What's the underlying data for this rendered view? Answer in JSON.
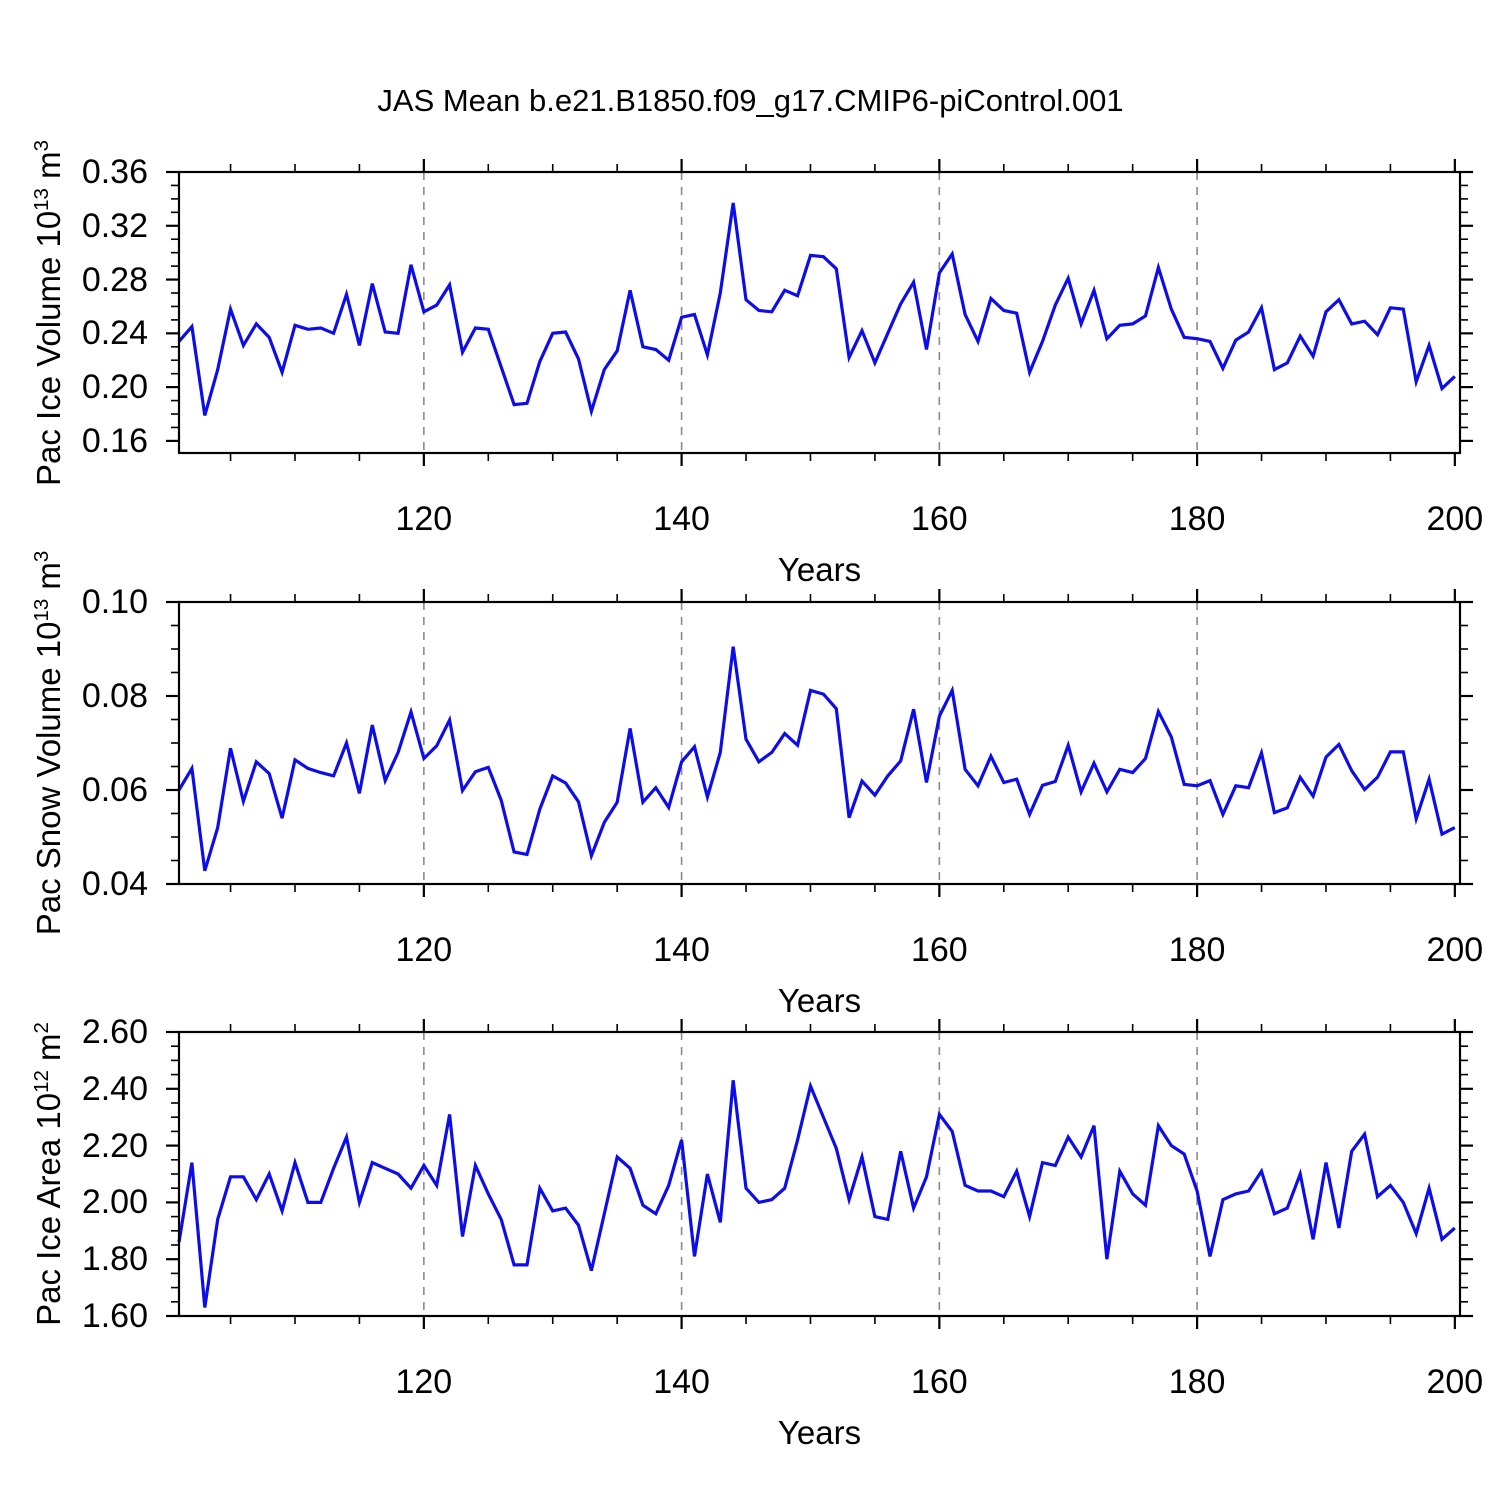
{
  "title": "JAS Mean b.e21.B1850.f09_g17.CMIP6-piControl.001",
  "xlabel": "Years",
  "colors": {
    "line": "#0d0de8",
    "grid": "#8a8a8a",
    "axis": "#000000"
  },
  "chart_data": [
    {
      "type": "line",
      "name": "pac-ice-volume",
      "ylabel": {
        "prefix": "Pac Ice Volume 10",
        "exp": "13",
        "unit": " m",
        "unit_exp": "3"
      },
      "xlabel": "Years",
      "xlim": [
        101,
        200.4
      ],
      "ylim": [
        0.151,
        0.36
      ],
      "x_start": 101,
      "grid_x": [
        120,
        140,
        160,
        180
      ],
      "xticks": [
        120,
        140,
        160,
        180,
        200
      ],
      "xtick_labels": [
        "120",
        "140",
        "160",
        "180",
        "200"
      ],
      "xminor_step": 5,
      "yticks": [
        0.36,
        0.32,
        0.28,
        0.24,
        0.2,
        0.16
      ],
      "ytick_labels": [
        "0.36",
        "0.32",
        "0.28",
        "0.24",
        "0.20",
        "0.16"
      ],
      "yminor_step": 0.01,
      "values": [
        0.234,
        0.245,
        0.179,
        0.213,
        0.258,
        0.231,
        0.247,
        0.237,
        0.211,
        0.246,
        0.243,
        0.244,
        0.24,
        0.269,
        0.231,
        0.277,
        0.241,
        0.24,
        0.291,
        0.256,
        0.261,
        0.276,
        0.226,
        0.244,
        0.243,
        0.215,
        0.187,
        0.188,
        0.219,
        0.24,
        0.241,
        0.221,
        0.182,
        0.213,
        0.227,
        0.272,
        0.23,
        0.228,
        0.22,
        0.252,
        0.254,
        0.224,
        0.27,
        0.337,
        0.265,
        0.257,
        0.256,
        0.272,
        0.268,
        0.298,
        0.297,
        0.288,
        0.222,
        0.242,
        0.218,
        0.24,
        0.262,
        0.278,
        0.228,
        0.285,
        0.299,
        0.254,
        0.234,
        0.266,
        0.257,
        0.255,
        0.211,
        0.234,
        0.261,
        0.281,
        0.247,
        0.272,
        0.236,
        0.246,
        0.247,
        0.253,
        0.289,
        0.258,
        0.237,
        0.236,
        0.234,
        0.214,
        0.235,
        0.241,
        0.259,
        0.213,
        0.218,
        0.238,
        0.223,
        0.256,
        0.265,
        0.247,
        0.249,
        0.239,
        0.259,
        0.258,
        0.204,
        0.231,
        0.199,
        0.208
      ]
    },
    {
      "type": "line",
      "name": "pac-snow-volume",
      "ylabel": {
        "prefix": "Pac Snow Volume 10",
        "exp": "13",
        "unit": " m",
        "unit_exp": "3"
      },
      "xlabel": "Years",
      "xlim": [
        101,
        200.4
      ],
      "ylim": [
        0.04,
        0.1
      ],
      "x_start": 101,
      "grid_x": [
        120,
        140,
        160,
        180
      ],
      "xticks": [
        120,
        140,
        160,
        180,
        200
      ],
      "xtick_labels": [
        "120",
        "140",
        "160",
        "180",
        "200"
      ],
      "xminor_step": 5,
      "yticks": [
        0.1,
        0.08,
        0.06,
        0.04
      ],
      "ytick_labels": [
        "0.10",
        "0.08",
        "0.06",
        "0.04"
      ],
      "yminor_step": 0.005,
      "values": [
        0.06,
        0.0646,
        0.0428,
        0.052,
        0.0689,
        0.0576,
        0.066,
        0.0635,
        0.054,
        0.0664,
        0.0646,
        0.0637,
        0.063,
        0.07,
        0.0593,
        0.0738,
        0.062,
        0.068,
        0.0766,
        0.0667,
        0.0694,
        0.0749,
        0.0599,
        0.0639,
        0.0648,
        0.0578,
        0.0468,
        0.0463,
        0.0559,
        0.063,
        0.0615,
        0.0575,
        0.046,
        0.0531,
        0.0574,
        0.0731,
        0.0574,
        0.0605,
        0.0563,
        0.066,
        0.0692,
        0.0585,
        0.068,
        0.0905,
        0.0708,
        0.066,
        0.068,
        0.072,
        0.0695,
        0.0812,
        0.0804,
        0.0773,
        0.0541,
        0.0619,
        0.0589,
        0.063,
        0.0662,
        0.0772,
        0.0616,
        0.0757,
        0.0812,
        0.0644,
        0.0609,
        0.0672,
        0.0616,
        0.0623,
        0.0548,
        0.061,
        0.0618,
        0.0695,
        0.0596,
        0.0657,
        0.0596,
        0.0644,
        0.0637,
        0.0667,
        0.0767,
        0.0713,
        0.0612,
        0.0609,
        0.062,
        0.0548,
        0.0609,
        0.0605,
        0.0679,
        0.0552,
        0.0562,
        0.0627,
        0.0587,
        0.067,
        0.0697,
        0.0641,
        0.0601,
        0.0627,
        0.0681,
        0.0681,
        0.0539,
        0.0623,
        0.0506,
        0.052
      ]
    },
    {
      "type": "line",
      "name": "pac-ice-area",
      "ylabel": {
        "prefix": "Pac Ice Area 10",
        "exp": "12",
        "unit": " m",
        "unit_exp": "2"
      },
      "xlabel": "Years",
      "xlim": [
        101,
        200.4
      ],
      "ylim": [
        1.6,
        2.6
      ],
      "x_start": 101,
      "grid_x": [
        120,
        140,
        160,
        180
      ],
      "xticks": [
        120,
        140,
        160,
        180,
        200
      ],
      "xtick_labels": [
        "120",
        "140",
        "160",
        "180",
        "200"
      ],
      "xminor_step": 5,
      "yticks": [
        2.6,
        2.4,
        2.2,
        2.0,
        1.8,
        1.6
      ],
      "ytick_labels": [
        "2.60",
        "2.40",
        "2.20",
        "2.00",
        "1.80",
        "1.60"
      ],
      "yminor_step": 0.05,
      "values": [
        1.86,
        2.14,
        1.63,
        1.94,
        2.09,
        2.09,
        2.01,
        2.1,
        1.97,
        2.14,
        2.0,
        2.0,
        2.12,
        2.23,
        2.0,
        2.14,
        2.12,
        2.1,
        2.05,
        2.13,
        2.06,
        2.31,
        1.88,
        2.13,
        2.03,
        1.94,
        1.78,
        1.78,
        2.05,
        1.97,
        1.98,
        1.92,
        1.76,
        1.96,
        2.16,
        2.12,
        1.99,
        1.96,
        2.06,
        2.22,
        1.81,
        2.1,
        1.93,
        2.43,
        2.05,
        2.0,
        2.01,
        2.05,
        2.22,
        2.41,
        2.3,
        2.19,
        2.01,
        2.16,
        1.95,
        1.94,
        2.18,
        1.98,
        2.09,
        2.31,
        2.25,
        2.06,
        2.04,
        2.04,
        2.02,
        2.11,
        1.95,
        2.14,
        2.13,
        2.23,
        2.16,
        2.27,
        1.8,
        2.11,
        2.03,
        1.99,
        2.27,
        2.2,
        2.17,
        2.04,
        1.81,
        2.01,
        2.03,
        2.04,
        2.11,
        1.96,
        1.98,
        2.1,
        1.87,
        2.14,
        1.91,
        2.18,
        2.24,
        2.02,
        2.06,
        2.0,
        1.89,
        2.05,
        1.87,
        1.91
      ]
    }
  ]
}
